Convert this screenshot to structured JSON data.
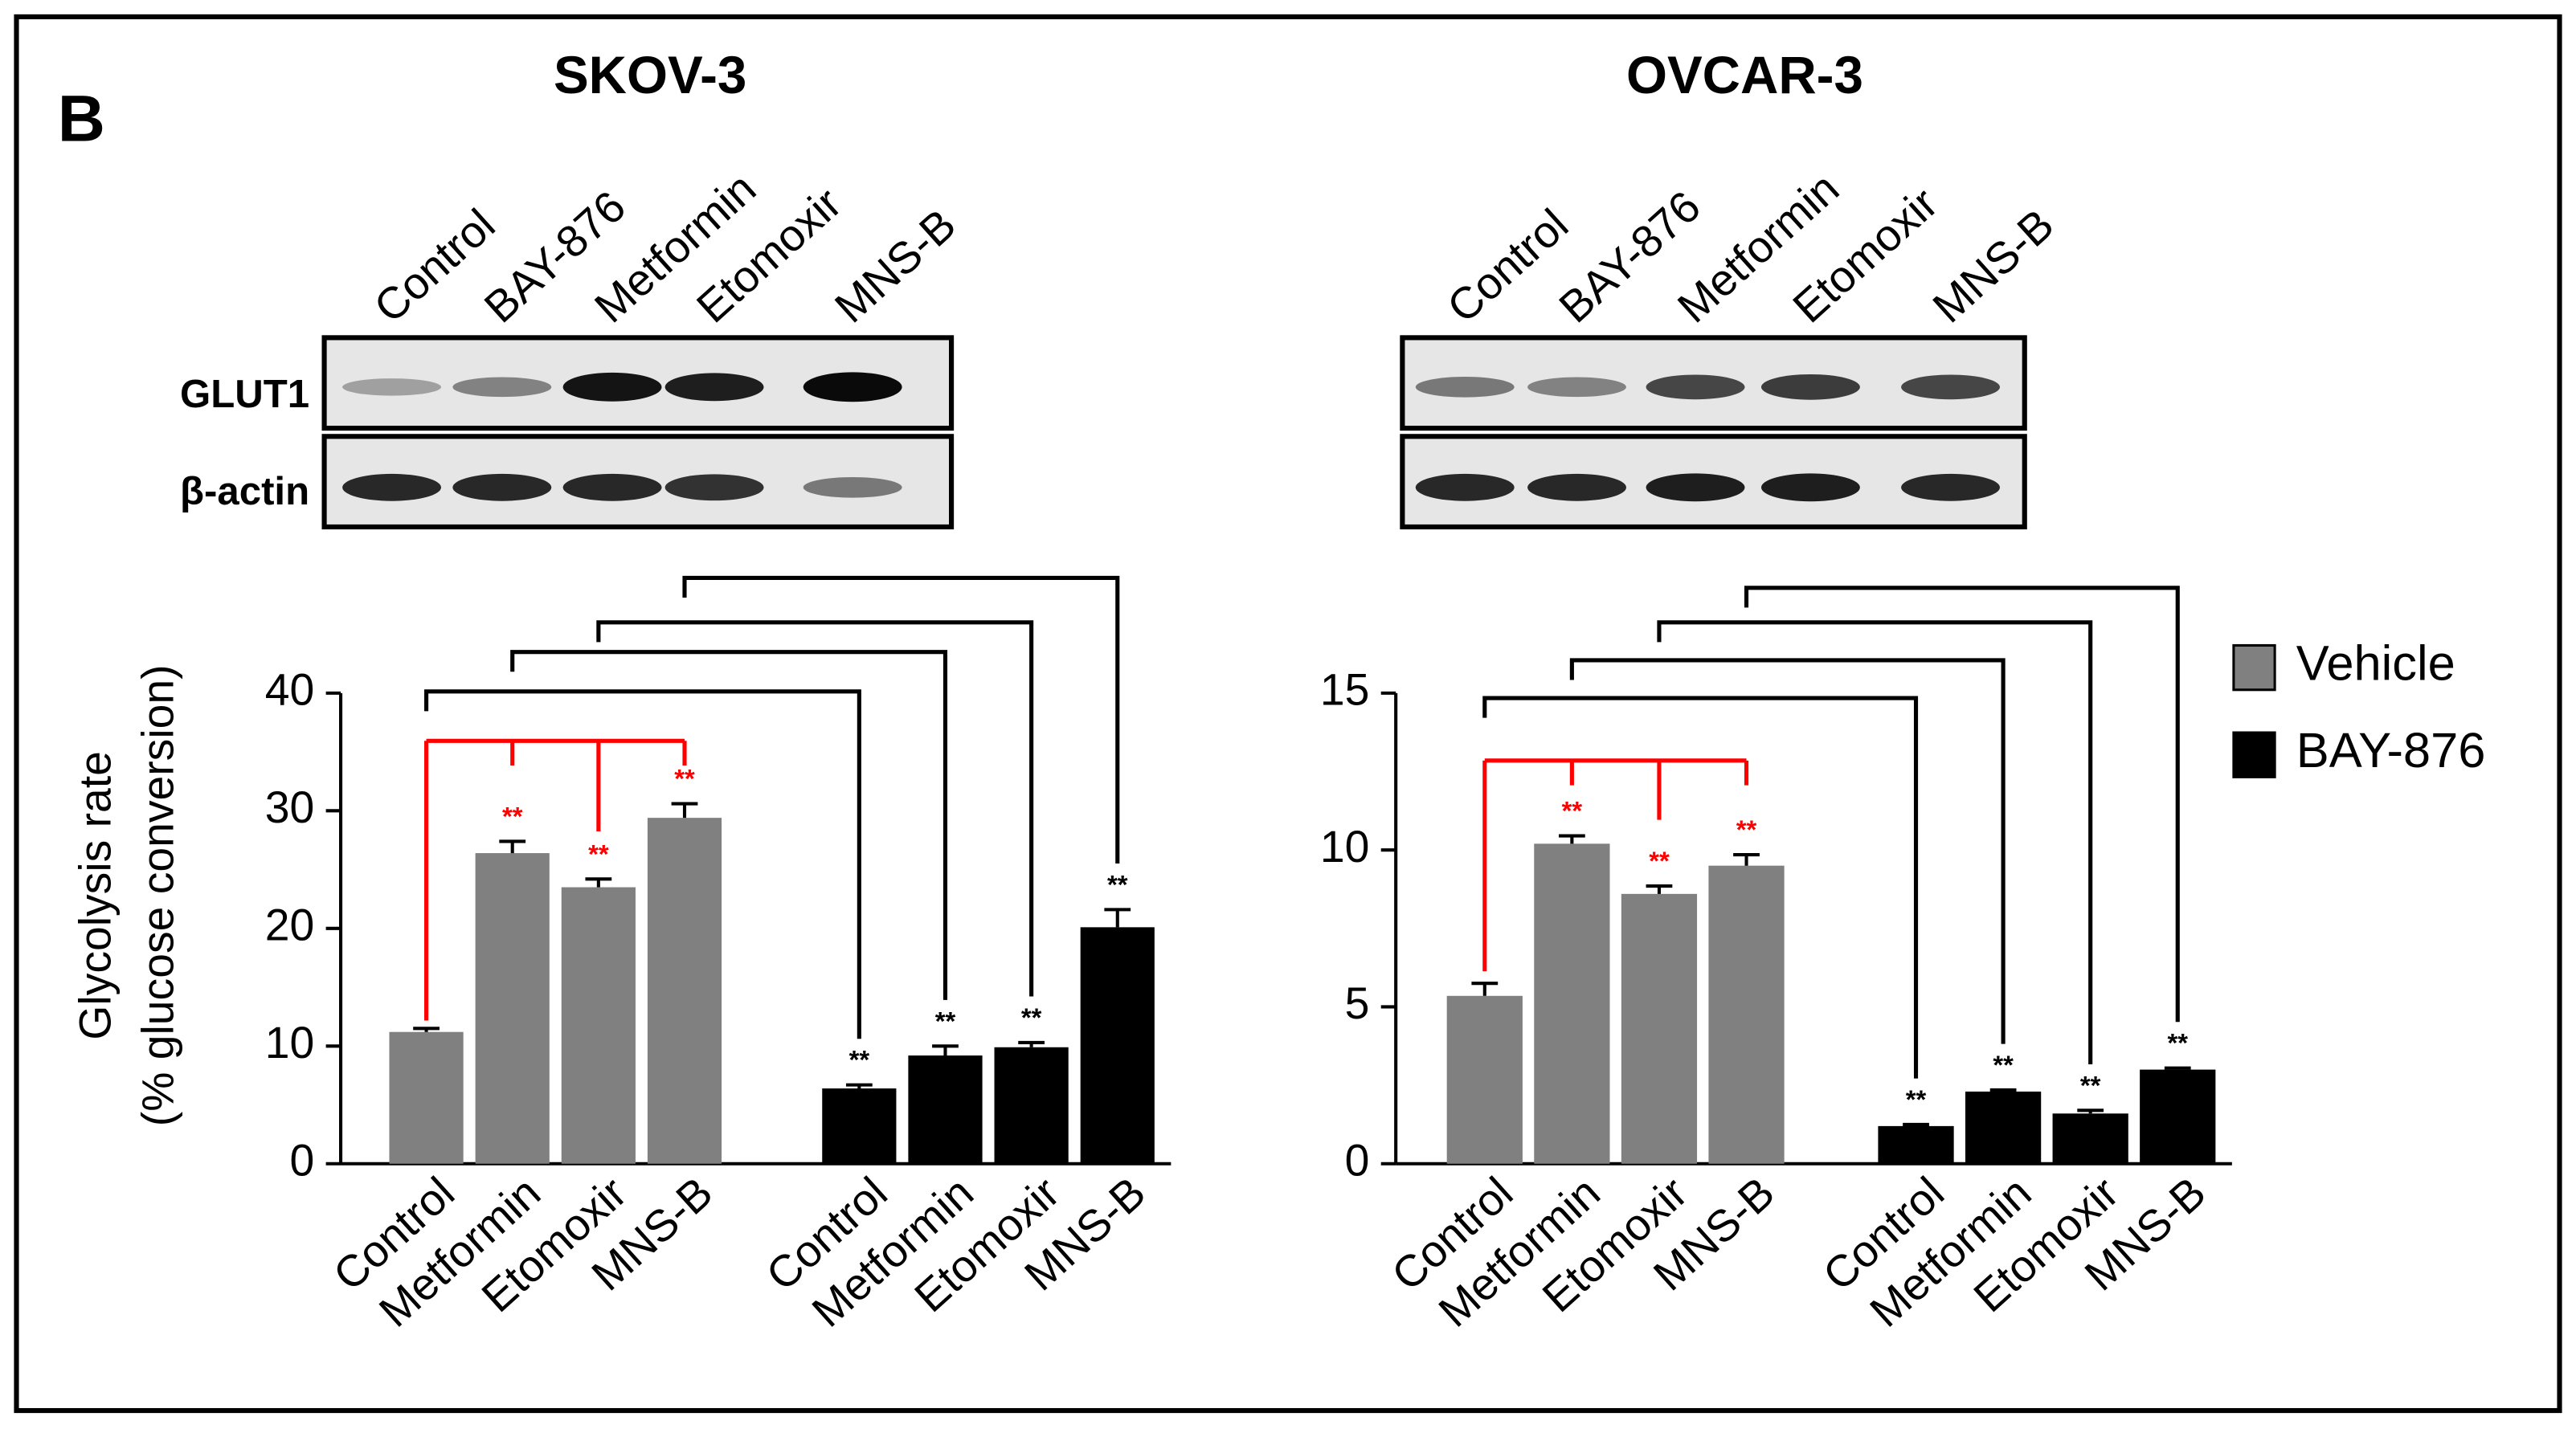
{
  "panel_label": "B",
  "blots": [
    {
      "rows": [
        "GLUT1",
        "β-actin"
      ],
      "lanes": [
        "Control",
        "BAY-876",
        "Metformin",
        "Etomoxir",
        "MNS-B"
      ]
    },
    {
      "lanes": [
        "Control",
        "BAY-876",
        "Metformin",
        "Etomoxir",
        "MNS-B"
      ]
    }
  ],
  "chart_data": [
    {
      "type": "bar",
      "title": "SKOV-3",
      "ylabel": [
        "Glycolysis rate",
        "(% glucose conversion)"
      ],
      "categories": [
        "Control",
        "Metformin",
        "Etomoxir",
        "MNS-B"
      ],
      "series": [
        {
          "name": "Vehicle",
          "color": "#808080",
          "values": [
            11.2,
            26.4,
            23.5,
            29.4
          ],
          "errors": [
            0.3,
            1.0,
            0.7,
            1.2
          ],
          "significance": [
            null,
            "**",
            "**",
            "**"
          ],
          "significance_color": "#ff0000"
        },
        {
          "name": "BAY-876",
          "color": "#000000",
          "values": [
            6.4,
            9.2,
            9.9,
            20.1
          ],
          "errors": [
            0.3,
            0.8,
            0.4,
            1.5
          ],
          "significance": [
            "**",
            "**",
            "**",
            "**"
          ],
          "significance_color": "#000000"
        }
      ],
      "ylim": [
        0,
        40
      ],
      "yticks": [
        0,
        10,
        20,
        30,
        40
      ]
    },
    {
      "type": "bar",
      "title": "OVCAR-3",
      "categories": [
        "Control",
        "Metformin",
        "Etomoxir",
        "MNS-B"
      ],
      "series": [
        {
          "name": "Vehicle",
          "color": "#808080",
          "values": [
            5.35,
            10.2,
            8.6,
            9.5
          ],
          "errors": [
            0.4,
            0.25,
            0.25,
            0.35
          ],
          "significance": [
            null,
            "**",
            "**",
            "**"
          ],
          "significance_color": "#ff0000"
        },
        {
          "name": "BAY-876",
          "color": "#000000",
          "values": [
            1.2,
            2.3,
            1.6,
            3.0
          ],
          "errors": [
            0.05,
            0.05,
            0.1,
            0.05
          ],
          "significance": [
            "**",
            "**",
            "**",
            "**"
          ],
          "significance_color": "#000000"
        }
      ],
      "ylim": [
        0,
        15
      ],
      "yticks": [
        0,
        5,
        10,
        15
      ],
      "legend": "right"
    }
  ]
}
